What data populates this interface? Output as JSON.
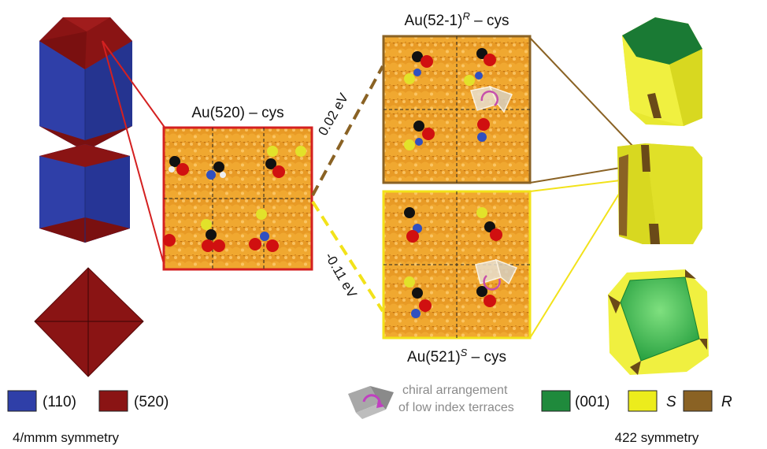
{
  "colors": {
    "blue_110": "#2f3fa8",
    "red_520": "#8a1414",
    "green_001": "#1f8a3c",
    "yellow_S": "#ecec1c",
    "brown_R": "#8a6224",
    "frame_red": "#d42020",
    "frame_brown": "#8a6224",
    "frame_yellow": "#f2e21a",
    "gold_atom": "#e6931d",
    "chiral_icon": "#c040c0"
  },
  "panels": {
    "center_title": "Au(520) – cys",
    "top_title_main": "Au(52-1)",
    "top_title_sup": "R",
    "top_title_suffix": " – cys",
    "bottom_title_main": "Au(521)",
    "bottom_title_sup": "S",
    "bottom_title_suffix": " – cys"
  },
  "energies": {
    "upper": "0.02 eV",
    "lower": "-0.11 eV"
  },
  "legend_left": {
    "items": [
      {
        "swatch": "blue",
        "label": "(110)"
      },
      {
        "swatch": "red",
        "label": "(520)"
      }
    ],
    "symmetry": "4/mmm symmetry"
  },
  "legend_right": {
    "chiral_line1": "chiral arrangement",
    "chiral_line2": "of low index terraces",
    "items": [
      {
        "swatch": "green",
        "label": "(001)"
      },
      {
        "swatch": "yellow",
        "label": "S"
      },
      {
        "swatch": "brown",
        "label": "R"
      }
    ],
    "symmetry": "422 symmetry"
  }
}
